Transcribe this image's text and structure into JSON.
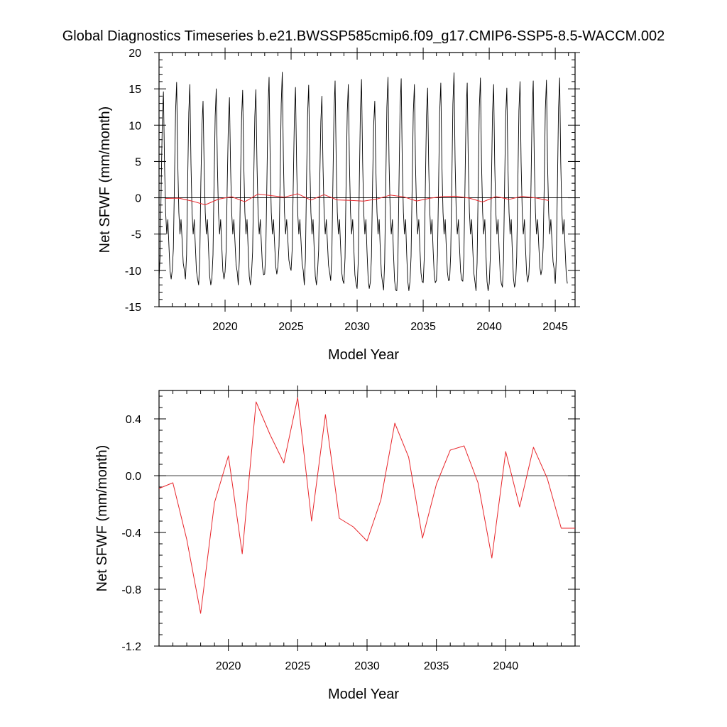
{
  "figure": {
    "title": "Global Diagnostics Timeseries b.e21.BWSSP585cmip6.f09_g17.CMIP6-SSP5-8.5-WACCM.002"
  },
  "chart_data": [
    {
      "type": "line",
      "xlabel": "Model Year",
      "ylabel": "Net SFWF (mm/month)",
      "xlim": [
        2015.0,
        2046.5
      ],
      "ylim": [
        -15,
        20
      ],
      "x_ticks": [
        "2020",
        "2025",
        "2030",
        "2035",
        "2040",
        "2045"
      ],
      "y_ticks": [
        "-15",
        "-10",
        "-5",
        "0",
        "5",
        "10",
        "15",
        "20"
      ],
      "zero_line": true,
      "grid": false,
      "monthly_start_year": 2015.0,
      "series": [
        {
          "color": "#000000",
          "peaks": [
            14.6,
            15.9,
            15.6,
            13.3,
            15.0,
            13.8,
            14.8,
            14.9,
            16.6,
            17.3,
            15.2,
            15.5,
            14.0,
            16.1,
            15.6,
            16.3,
            13.3,
            16.6,
            16.4,
            15.6,
            15.1,
            15.8,
            17.2,
            15.8,
            16.5,
            15.6,
            15.1,
            16.0,
            16.1,
            16.2,
            16.5
          ],
          "troughs": [
            -11.2,
            -10.0,
            -11.2,
            -12.0,
            -11.2,
            -10.2,
            -12.0,
            -10.6,
            -10.5,
            -9.5,
            -10.0,
            -12.0,
            -10.3,
            -11.4,
            -11.8,
            -12.5,
            -11.6,
            -12.7,
            -12.8,
            -11.5,
            -11.7,
            -11.4,
            -11.3,
            -11.5,
            -12.8,
            -11.8,
            -12.3,
            -11.6,
            -10.6,
            -9.8,
            -11.8
          ]
        },
        {
          "color": "#e8262b",
          "x": [
            2015.5,
            2016.5,
            2017.5,
            2018.5,
            2019.5,
            2020.5,
            2021.5,
            2022.5,
            2023.5,
            2024.5,
            2025.5,
            2026.5,
            2027.5,
            2028.5,
            2029.5,
            2030.5,
            2031.5,
            2032.5,
            2033.5,
            2034.5,
            2035.5,
            2036.5,
            2037.5,
            2038.5,
            2039.5,
            2040.5,
            2041.5,
            2042.5,
            2043.5,
            2044.5
          ],
          "y": [
            -0.09,
            -0.05,
            -0.45,
            -0.97,
            -0.19,
            0.14,
            -0.55,
            0.52,
            0.29,
            0.09,
            0.55,
            -0.32,
            0.43,
            -0.3,
            -0.36,
            -0.46,
            -0.17,
            0.37,
            0.13,
            -0.44,
            -0.06,
            0.18,
            0.21,
            -0.05,
            -0.58,
            0.17,
            -0.22,
            0.2,
            -0.02,
            -0.37
          ]
        }
      ]
    },
    {
      "type": "line",
      "xlabel": "Model Year",
      "ylabel": "Net SFWF (mm/month)",
      "xlim": [
        2015.0,
        2045.0
      ],
      "ylim": [
        -1.2,
        0.6
      ],
      "x_ticks": [
        "2020",
        "2025",
        "2030",
        "2035",
        "2040"
      ],
      "y_ticks": [
        "-1.2",
        "-0.8",
        "-0.4",
        "0.0",
        "0.4"
      ],
      "zero_line": true,
      "grid": false,
      "series": [
        {
          "color": "#e8262b",
          "x": [
            2015.0,
            2016.0,
            2017.0,
            2018.0,
            2019.0,
            2020.0,
            2021.0,
            2022.0,
            2023.0,
            2024.0,
            2025.0,
            2026.0,
            2027.0,
            2028.0,
            2029.0,
            2030.0,
            2031.0,
            2032.0,
            2033.0,
            2034.0,
            2035.0,
            2036.0,
            2037.0,
            2038.0,
            2039.0,
            2040.0,
            2041.0,
            2042.0,
            2043.0,
            2044.0,
            2045.0
          ],
          "y": [
            -0.09,
            -0.05,
            -0.45,
            -0.97,
            -0.19,
            0.14,
            -0.55,
            0.52,
            0.29,
            0.09,
            0.55,
            -0.32,
            0.43,
            -0.3,
            -0.36,
            -0.46,
            -0.17,
            0.37,
            0.13,
            -0.44,
            -0.06,
            0.18,
            0.21,
            -0.05,
            -0.58,
            0.17,
            -0.22,
            0.2,
            -0.02,
            -0.37,
            -0.37
          ]
        }
      ]
    }
  ]
}
